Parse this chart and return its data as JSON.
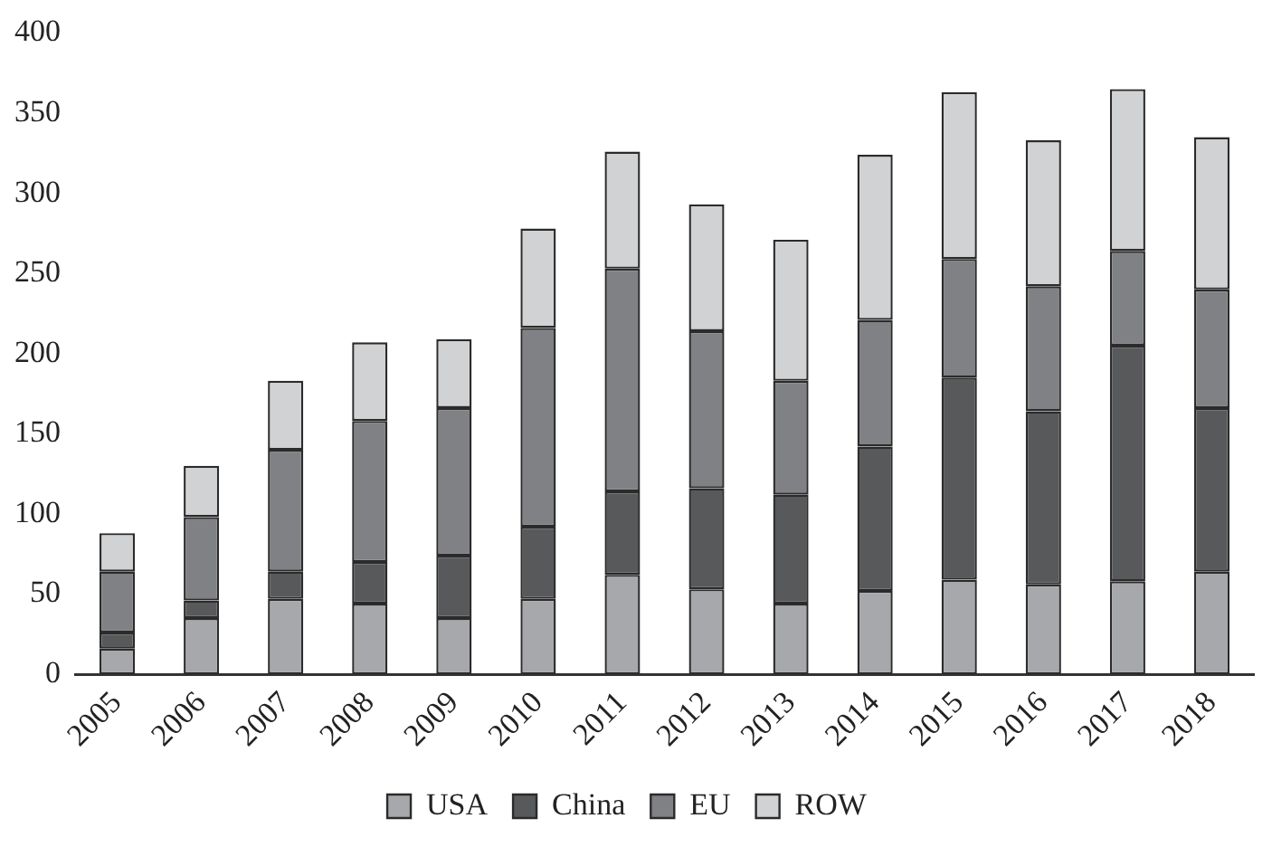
{
  "chart_data": {
    "type": "bar",
    "stacked": true,
    "categories": [
      "2005",
      "2006",
      "2007",
      "2008",
      "2009",
      "2010",
      "2011",
      "2012",
      "2013",
      "2014",
      "2015",
      "2016",
      "2017",
      "2018"
    ],
    "series": [
      {
        "name": "USA",
        "color": "#a7a8ab",
        "values": [
          16,
          35,
          47,
          44,
          35,
          47,
          62,
          53,
          44,
          52,
          59,
          56,
          58,
          64
        ]
      },
      {
        "name": "China",
        "color": "#58595b",
        "values": [
          10,
          11,
          17,
          26,
          39,
          45,
          52,
          63,
          68,
          90,
          126,
          108,
          147,
          102
        ]
      },
      {
        "name": "EU",
        "color": "#808184",
        "values": [
          38,
          52,
          76,
          88,
          92,
          124,
          139,
          98,
          71,
          79,
          74,
          78,
          59,
          74
        ]
      },
      {
        "name": "ROW",
        "color": "#d1d2d4",
        "values": [
          24,
          32,
          43,
          49,
          43,
          62,
          73,
          79,
          88,
          103,
          104,
          91,
          101,
          95
        ]
      }
    ],
    "ylim": [
      0,
      400
    ],
    "yticks": [
      0,
      50,
      100,
      150,
      200,
      250,
      300,
      350,
      400
    ],
    "grid": false,
    "legend": "bottom"
  }
}
